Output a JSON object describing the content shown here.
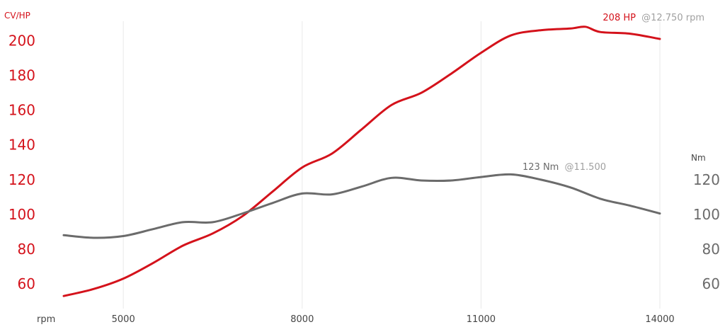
{
  "chart_data": {
    "type": "line",
    "x_label": "rpm",
    "x_ticks": [
      5000,
      8000,
      11000,
      14000
    ],
    "xlim": [
      4000,
      14000
    ],
    "y_left": {
      "unit_label": "CV/HP",
      "ticks": [
        60,
        80,
        100,
        120,
        140,
        160,
        180,
        200
      ],
      "ylim": [
        49,
        212
      ],
      "color": "#d4121b"
    },
    "y_right": {
      "unit_label": "Nm",
      "ticks": [
        60,
        80,
        100,
        120
      ],
      "color": "#6b6b6b"
    },
    "grid": true,
    "series": [
      {
        "axis": "left",
        "color": "#d4121b",
        "x": [
          4000,
          4500,
          5000,
          5500,
          6000,
          6500,
          7000,
          7500,
          8000,
          8500,
          9000,
          9500,
          10000,
          10500,
          11000,
          11500,
          12000,
          12500,
          12750,
          13000,
          13500,
          14000
        ],
        "y": [
          53,
          57,
          63,
          72,
          82,
          89,
          99,
          113,
          127,
          135,
          149,
          163,
          170,
          181,
          193,
          203,
          206,
          207,
          208,
          205,
          204,
          201
        ],
        "annotation": {
          "value": "208 HP",
          "at": "@12.750 rpm"
        }
      },
      {
        "axis": "left",
        "color": "#6b6b6b",
        "x": [
          4000,
          4500,
          5000,
          5500,
          6000,
          6500,
          7000,
          7500,
          8000,
          8500,
          9000,
          9500,
          10000,
          10500,
          11000,
          11500,
          12000,
          12500,
          13000,
          13500,
          14000
        ],
        "y": [
          88,
          86.5,
          87.5,
          91.5,
          95.5,
          95.5,
          100.5,
          106.5,
          112,
          111.5,
          116,
          121,
          119.5,
          119.5,
          121.5,
          123,
          120,
          115.5,
          109,
          105,
          100.5
        ],
        "annotation": {
          "value": "123 Nm",
          "at": "@11.500"
        }
      }
    ]
  }
}
